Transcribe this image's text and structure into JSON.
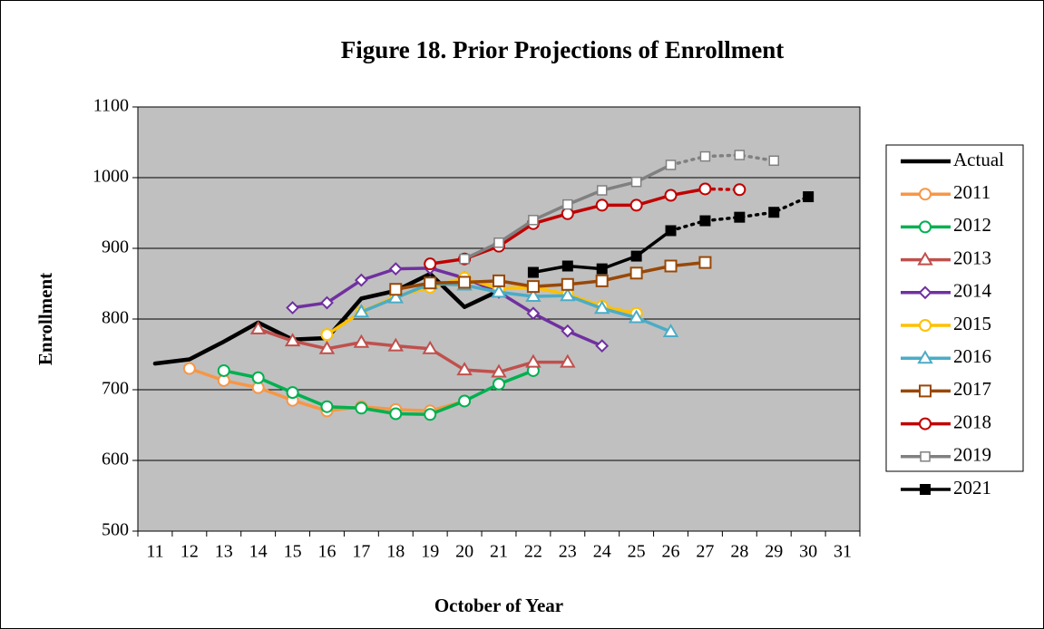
{
  "chart_data": {
    "type": "line",
    "title": "Figure 18. Prior Projections of Enrollment",
    "x_label": "October of Year",
    "y_label": "Enrollment",
    "categories": [
      "11",
      "12",
      "13",
      "14",
      "15",
      "16",
      "17",
      "18",
      "19",
      "20",
      "21",
      "22",
      "23",
      "24",
      "25",
      "26",
      "27",
      "28",
      "29",
      "30",
      "31"
    ],
    "ylim": [
      500,
      1100
    ],
    "yticks": [
      500,
      600,
      700,
      800,
      900,
      1000,
      1100
    ],
    "grid": true,
    "plot_background": "#c0c0c0",
    "legend": "right",
    "series": [
      {
        "name": "Actual",
        "color": "#000000",
        "marker": "none",
        "values": [
          737,
          743,
          768,
          795,
          771,
          773,
          829,
          840,
          864,
          817,
          840,
          null,
          null,
          null,
          null,
          null,
          null,
          null,
          null,
          null,
          null
        ]
      },
      {
        "name": "2011",
        "color": "#f79646",
        "marker": "circle",
        "values": [
          null,
          730,
          713,
          703,
          685,
          670,
          676,
          672,
          670,
          684,
          null,
          null,
          null,
          null,
          null,
          null,
          null,
          null,
          null,
          null,
          null
        ]
      },
      {
        "name": "2012",
        "color": "#00b050",
        "marker": "circle",
        "values": [
          null,
          null,
          727,
          717,
          696,
          676,
          674,
          666,
          665,
          684,
          708,
          727,
          null,
          null,
          null,
          null,
          null,
          null,
          null,
          null,
          null
        ]
      },
      {
        "name": "2013",
        "color": "#c0504d",
        "marker": "triangle",
        "values": [
          null,
          null,
          null,
          786,
          769,
          758,
          767,
          762,
          758,
          728,
          725,
          739,
          739,
          null,
          null,
          null,
          null,
          null,
          null,
          null,
          null
        ]
      },
      {
        "name": "2014",
        "color": "#7030a0",
        "marker": "diamond",
        "values": [
          null,
          null,
          null,
          null,
          816,
          823,
          855,
          871,
          872,
          858,
          838,
          808,
          783,
          762,
          null,
          null,
          null,
          null,
          null,
          null,
          null
        ]
      },
      {
        "name": "2015",
        "color": "#ffc000",
        "marker": "circle",
        "values": [
          null,
          null,
          null,
          null,
          null,
          778,
          810,
          832,
          845,
          858,
          843,
          845,
          835,
          818,
          808,
          null,
          null,
          null,
          null,
          null,
          null
        ]
      },
      {
        "name": "2016",
        "color": "#4bacc6",
        "marker": "triangle",
        "values": [
          null,
          null,
          null,
          null,
          null,
          null,
          810,
          830,
          850,
          848,
          838,
          832,
          833,
          815,
          802,
          782,
          null,
          null,
          null,
          null,
          null
        ]
      },
      {
        "name": "2017",
        "color": "#984807",
        "marker": "square",
        "values": [
          null,
          null,
          null,
          null,
          null,
          null,
          null,
          842,
          851,
          852,
          854,
          846,
          849,
          854,
          865,
          875,
          880,
          null,
          null,
          null,
          null
        ]
      },
      {
        "name": "2018",
        "color": "#c00000",
        "marker": "circle",
        "dotted_from": 16,
        "values": [
          null,
          null,
          null,
          null,
          null,
          null,
          null,
          null,
          878,
          885,
          903,
          935,
          949,
          961,
          961,
          975,
          984,
          983,
          null,
          null,
          null
        ]
      },
      {
        "name": "2019",
        "color": "#808080",
        "marker": "small-square",
        "dotted_from": 15,
        "values": [
          null,
          null,
          null,
          null,
          null,
          null,
          null,
          null,
          null,
          885,
          908,
          940,
          962,
          982,
          994,
          1018,
          1030,
          1032,
          1024,
          null,
          null
        ]
      },
      {
        "name": "2021",
        "color": "#000000",
        "marker": "filled-square",
        "dotted_from": 15,
        "values": [
          null,
          null,
          null,
          null,
          null,
          null,
          null,
          null,
          null,
          null,
          null,
          866,
          875,
          871,
          889,
          925,
          939,
          944,
          951,
          973,
          null
        ]
      }
    ]
  }
}
